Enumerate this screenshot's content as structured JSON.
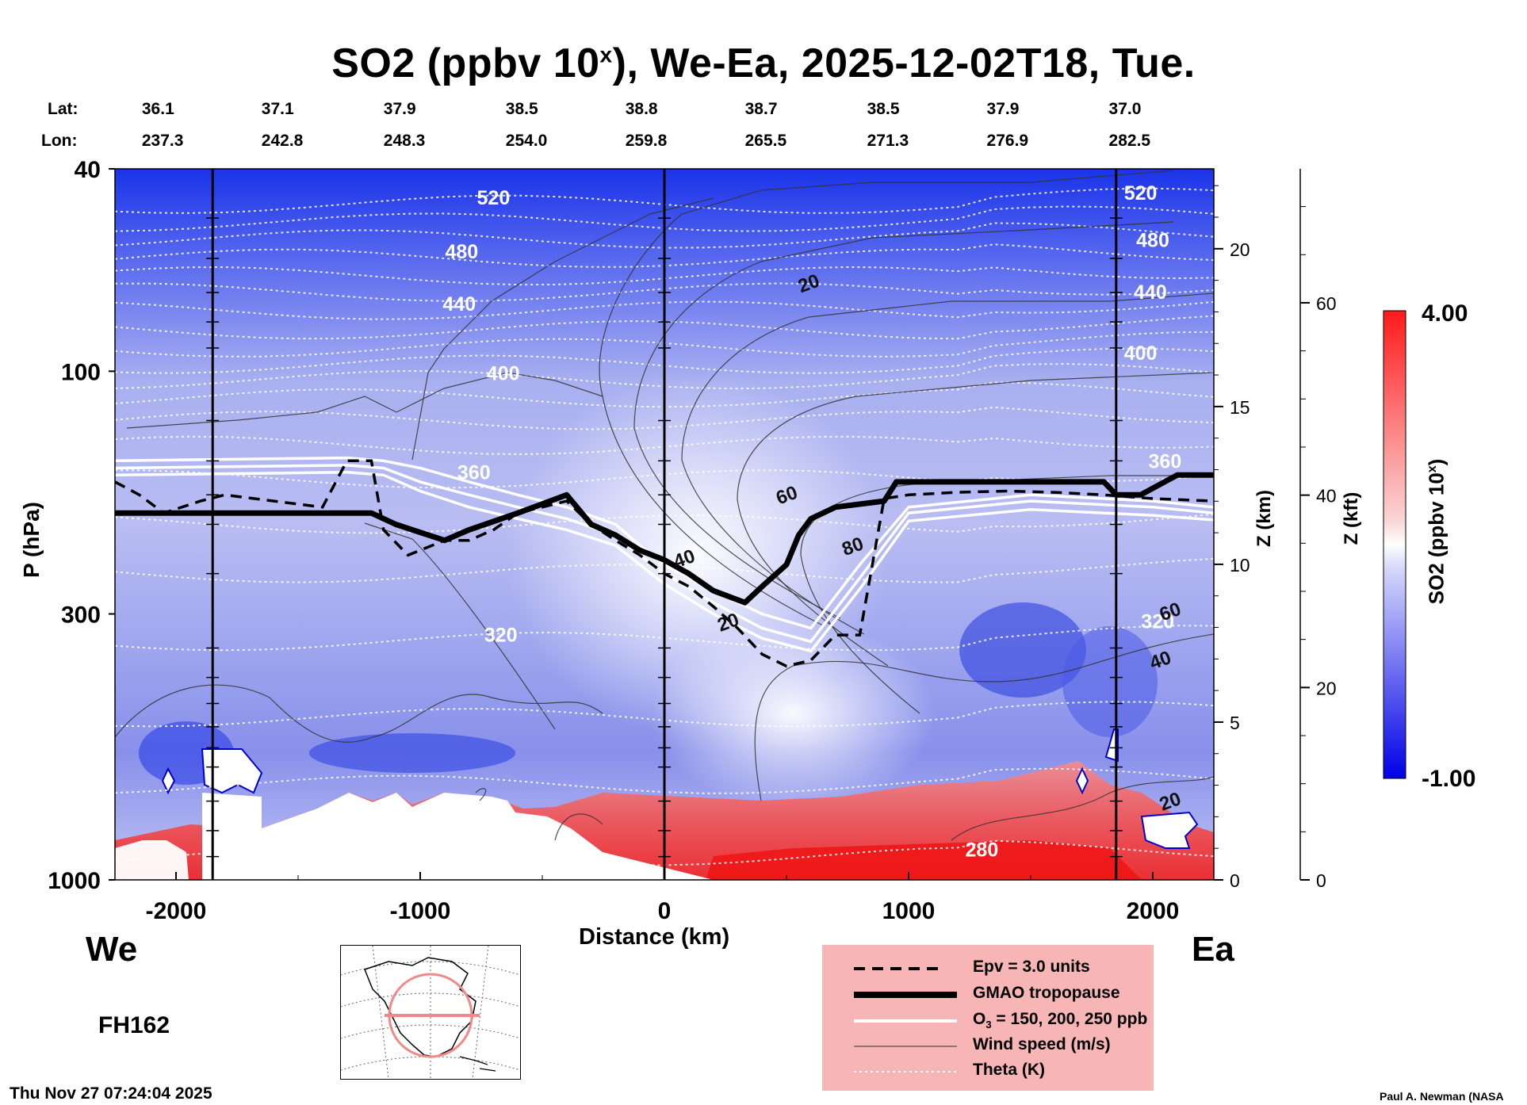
{
  "title": {
    "main": "SO2 (ppbv 10",
    "sup": "x",
    "rest": "), We-Ea, 2025-12-02T18, Tue."
  },
  "header": {
    "lat_label": "Lat:",
    "lon_label": "Lon:",
    "lat": [
      "36.1",
      "37.1",
      "37.9",
      "38.5",
      "38.8",
      "38.7",
      "38.5",
      "37.9",
      "37.0"
    ],
    "lon": [
      "237.3",
      "242.8",
      "248.3",
      "254.0",
      "259.8",
      "265.5",
      "271.3",
      "276.9",
      "282.5"
    ]
  },
  "axes": {
    "y_label": "P (hPa)",
    "x_label": "Distance (km)",
    "z_km_label": "Z (km)",
    "z_kft_label": "Z (kft)"
  },
  "direction": {
    "west": "We",
    "east": "Ea"
  },
  "forecast_hour": "FH162",
  "timestamp": "Thu Nov 27 07:24:04 2025",
  "credit": "Paul A. Newman (NASA",
  "colorbar": {
    "label_main": "SO2 (ppbv 10",
    "label_sup": "x",
    "label_end": ")",
    "max": "4.00",
    "min": "-1.00",
    "colors": [
      "#0000e6",
      "#ffffff",
      "#ff1a1a"
    ]
  },
  "legend": {
    "epv": "Epv = 3.0 units",
    "tropopause": "GMAO tropopause",
    "o3_pre": "O",
    "o3_sub": "3",
    "o3_post": " = 150, 200, 250 ppb",
    "wind": "Wind speed (m/s)",
    "theta": "Theta (K)"
  },
  "chart_data": {
    "type": "heatmap",
    "title": "SO2 (ppbv 10^x), We-Ea, 2025-12-02T18, Tue.",
    "xlabel": "Distance (km)",
    "ylabel": "P (hPa)",
    "xlim": [
      -2250,
      2250
    ],
    "ylim": [
      1000,
      40
    ],
    "x_ticks": [
      -2000,
      -1000,
      0,
      1000,
      2000
    ],
    "x_tick_labels": [
      "-2000",
      "-1000",
      "0",
      "1000",
      "2000"
    ],
    "p_ticks": [
      40,
      100,
      300,
      1000
    ],
    "p_tick_labels": [
      "40",
      "100",
      "300",
      "1000"
    ],
    "z_km_ticks": [
      0,
      5,
      10,
      15,
      20
    ],
    "z_km_tick_labels": [
      "0",
      "5",
      "10",
      "15",
      "20"
    ],
    "z_kft_ticks": [
      0,
      20,
      40,
      60
    ],
    "z_kft_tick_labels": [
      "0",
      "20",
      "40",
      "60"
    ],
    "colorbar_range": [
      -1.0,
      4.0
    ],
    "vertical_markers_km": [
      -1850,
      0,
      1850
    ],
    "theta_labels": [
      {
        "text": "520",
        "x": -700,
        "p": 47
      },
      {
        "text": "480",
        "x": -830,
        "p": 60
      },
      {
        "text": "440",
        "x": -840,
        "p": 76
      },
      {
        "text": "400",
        "x": -660,
        "p": 104
      },
      {
        "text": "360",
        "x": -780,
        "p": 163
      },
      {
        "text": "320",
        "x": -670,
        "p": 340
      },
      {
        "text": "520",
        "x": 1950,
        "p": 46
      },
      {
        "text": "480",
        "x": 2000,
        "p": 57
      },
      {
        "text": "440",
        "x": 1990,
        "p": 72
      },
      {
        "text": "400",
        "x": 1950,
        "p": 95
      },
      {
        "text": "360",
        "x": 2050,
        "p": 155
      },
      {
        "text": "320",
        "x": 2020,
        "p": 320
      },
      {
        "text": "280",
        "x": 1300,
        "p": 900
      }
    ],
    "wind_labels": [
      {
        "text": "20",
        "x": 600,
        "p": 69
      },
      {
        "text": "60",
        "x": 510,
        "p": 180
      },
      {
        "text": "80",
        "x": 780,
        "p": 227
      },
      {
        "text": "40",
        "x": 90,
        "p": 240
      },
      {
        "text": "20",
        "x": 270,
        "p": 320
      },
      {
        "text": "60",
        "x": 2080,
        "p": 305
      },
      {
        "text": "40",
        "x": 2040,
        "p": 380
      },
      {
        "text": "20",
        "x": 2080,
        "p": 720
      }
    ],
    "tropopause": {
      "x": [
        -2250,
        -1200,
        -1100,
        -900,
        -800,
        -600,
        -400,
        -300,
        -200,
        -100,
        0,
        100,
        200,
        330,
        400,
        500,
        550,
        600,
        700,
        900,
        950,
        1800,
        1850,
        1950,
        2100,
        2250
      ],
      "p": [
        190,
        190,
        200,
        215,
        205,
        190,
        175,
        200,
        210,
        225,
        235,
        250,
        270,
        285,
        265,
        240,
        210,
        195,
        185,
        180,
        165,
        165,
        175,
        175,
        160,
        160
      ]
    },
    "epv": {
      "x": [
        -2250,
        -2150,
        -2050,
        -1900,
        -1800,
        -1600,
        -1400,
        -1300,
        -1200,
        -1150,
        -1050,
        -900,
        -800,
        -700,
        -600,
        -500,
        -400,
        -300,
        -200,
        -100,
        0,
        100,
        200,
        300,
        400,
        500,
        600,
        700,
        800,
        900,
        1000,
        1200,
        1400,
        1600,
        1800,
        2000,
        2250
      ],
      "p": [
        165,
        175,
        190,
        180,
        175,
        180,
        185,
        150,
        150,
        205,
        230,
        215,
        215,
        205,
        190,
        185,
        180,
        200,
        215,
        230,
        250,
        265,
        290,
        320,
        360,
        380,
        370,
        330,
        330,
        178,
        175,
        173,
        172,
        173,
        175,
        178,
        180
      ]
    },
    "ozone_contours": [
      {
        "x": [
          -2250,
          -1300,
          -1150,
          -1000,
          -800,
          -600,
          -400,
          -200,
          -100,
          0,
          200,
          400,
          600,
          800,
          1000,
          1500,
          2000,
          2250
        ],
        "p": [
          150,
          148,
          150,
          155,
          165,
          175,
          185,
          200,
          220,
          240,
          270,
          300,
          320,
          240,
          185,
          175,
          180,
          185
        ]
      },
      {
        "x": [
          -2250,
          -1300,
          -1150,
          -1000,
          -800,
          -600,
          -400,
          -200,
          -100,
          0,
          200,
          400,
          600,
          800,
          1000,
          1500,
          2000,
          2250
        ],
        "p": [
          155,
          153,
          155,
          165,
          175,
          185,
          195,
          210,
          230,
          250,
          285,
          320,
          340,
          255,
          190,
          180,
          185,
          190
        ]
      },
      {
        "x": [
          -2250,
          -1300,
          -1150,
          -1000,
          -800,
          -600,
          -400,
          -200,
          -100,
          0,
          200,
          400,
          600,
          800,
          1000,
          1500,
          2000,
          2250
        ],
        "p": [
          160,
          158,
          160,
          172,
          185,
          195,
          205,
          220,
          240,
          262,
          300,
          335,
          355,
          268,
          197,
          187,
          192,
          196
        ]
      }
    ]
  }
}
